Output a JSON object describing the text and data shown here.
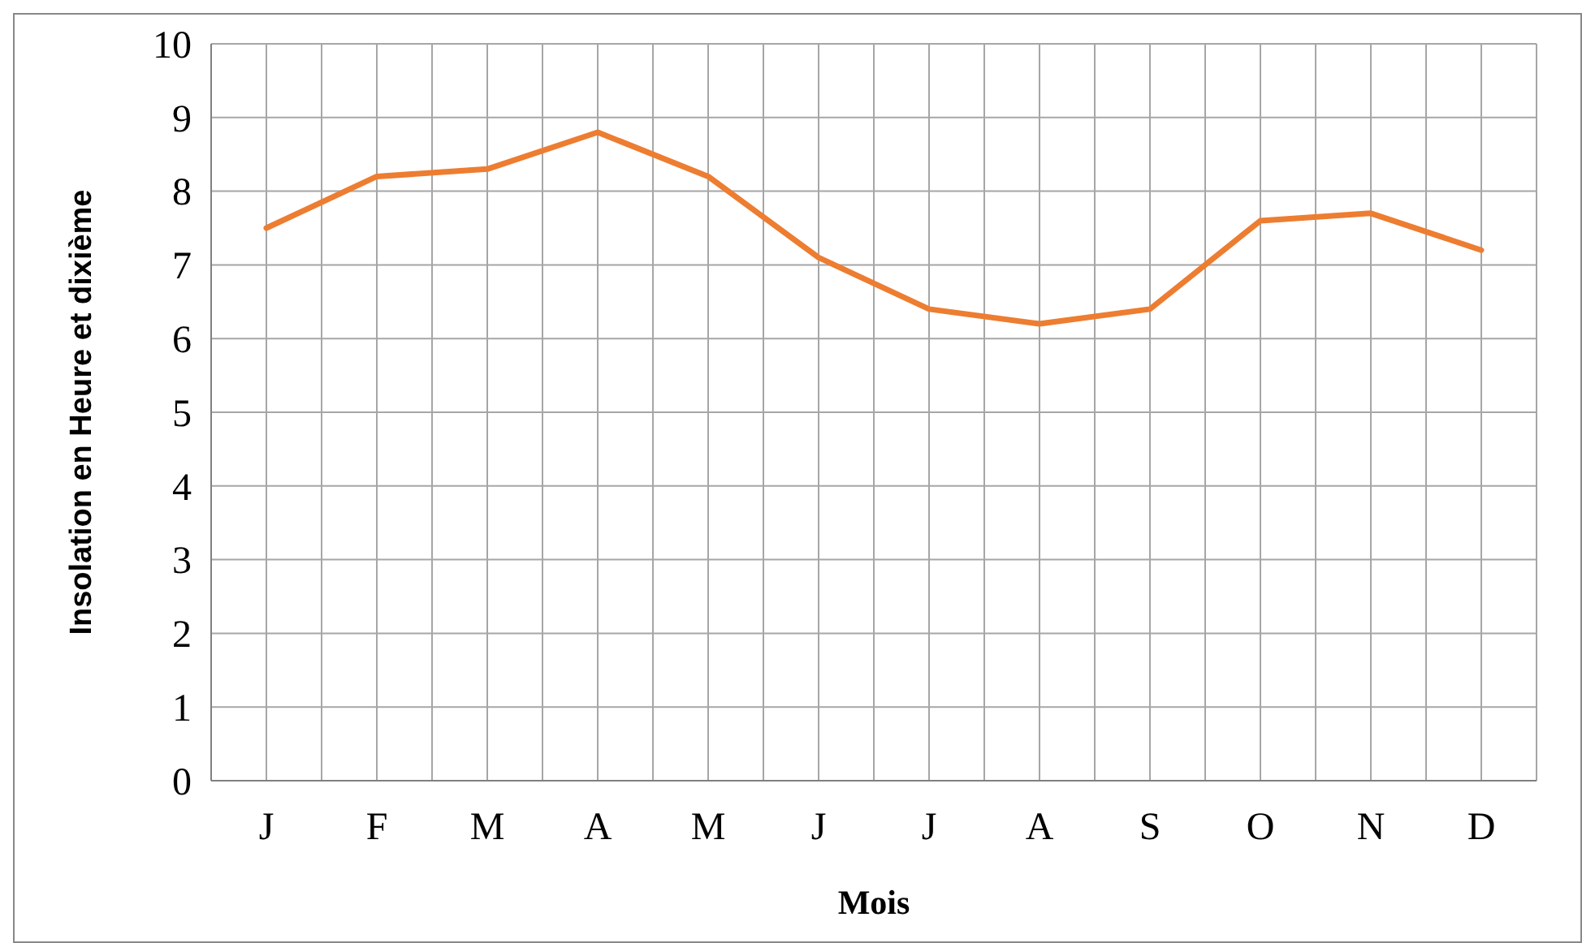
{
  "chart_data": {
    "type": "line",
    "xlabel": "Mois",
    "ylabel": "Insolation en Heure et dixième",
    "categories": [
      "J",
      "F",
      "M",
      "A",
      "M",
      "J",
      "J",
      "A",
      "S",
      "O",
      "N",
      "D"
    ],
    "series": [
      {
        "color": "#ed7d31",
        "values": [
          7.5,
          8.2,
          8.3,
          8.8,
          8.2,
          7.1,
          6.4,
          6.2,
          6.4,
          7.6,
          7.7,
          7.2
        ]
      }
    ],
    "ylim": [
      0,
      10
    ],
    "yticks": [
      0,
      1,
      2,
      3,
      4,
      5,
      6,
      7,
      8,
      9,
      10
    ],
    "grid": true,
    "marker": "none",
    "line_style": "solid"
  }
}
